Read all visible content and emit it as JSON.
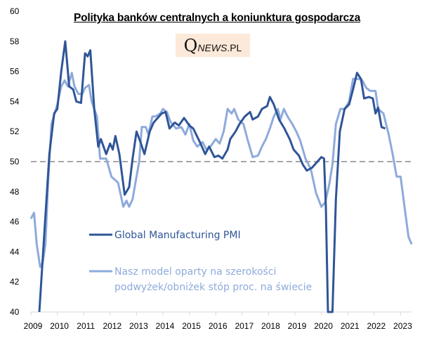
{
  "chart_data": {
    "type": "line",
    "title": "Polityka banków centralnych a koniunktura gospodarcza",
    "watermark": {
      "q": "Q",
      "news": "NEWS",
      "suffix": ".PL"
    },
    "xlabel": "",
    "ylabel": "",
    "xlim": [
      2009,
      2023.45
    ],
    "ylim": [
      40,
      60
    ],
    "x_ticks": [
      2009,
      2010,
      2011,
      2012,
      2013,
      2014,
      2015,
      2016,
      2017,
      2018,
      2019,
      2020,
      2021,
      2022,
      2023
    ],
    "y_ticks": [
      40,
      42,
      44,
      46,
      48,
      50,
      52,
      54,
      56,
      58,
      60
    ],
    "reference_line": {
      "value": 50,
      "style": "dashed",
      "color": "#a6a6a6"
    },
    "grid": false,
    "legend_position": "center-left (inside plot)",
    "series": [
      {
        "name": "Global Manufacturing PMI",
        "color": "#2f5597",
        "points": [
          [
            2009.32,
            40.0
          ],
          [
            2009.5,
            45.0
          ],
          [
            2009.7,
            50.5
          ],
          [
            2009.88,
            53.2
          ],
          [
            2010.0,
            53.5
          ],
          [
            2010.15,
            56.0
          ],
          [
            2010.3,
            58.0
          ],
          [
            2010.45,
            55.0
          ],
          [
            2010.6,
            54.8
          ],
          [
            2010.72,
            54.0
          ],
          [
            2010.9,
            53.9
          ],
          [
            2011.05,
            57.2
          ],
          [
            2011.15,
            57.0
          ],
          [
            2011.25,
            57.4
          ],
          [
            2011.4,
            53.5
          ],
          [
            2011.55,
            51.0
          ],
          [
            2011.65,
            51.5
          ],
          [
            2011.85,
            50.5
          ],
          [
            2012.0,
            51.2
          ],
          [
            2012.1,
            50.8
          ],
          [
            2012.2,
            51.7
          ],
          [
            2012.35,
            50.5
          ],
          [
            2012.55,
            47.8
          ],
          [
            2012.72,
            48.3
          ],
          [
            2012.85,
            50.2
          ],
          [
            2013.0,
            52.0
          ],
          [
            2013.15,
            51.3
          ],
          [
            2013.3,
            50.5
          ],
          [
            2013.5,
            52.0
          ],
          [
            2013.65,
            52.6
          ],
          [
            2013.85,
            53.0
          ],
          [
            2013.95,
            53.2
          ],
          [
            2014.1,
            53.3
          ],
          [
            2014.25,
            52.2
          ],
          [
            2014.45,
            52.6
          ],
          [
            2014.6,
            52.4
          ],
          [
            2014.8,
            52.9
          ],
          [
            2015.0,
            52.4
          ],
          [
            2015.15,
            52.2
          ],
          [
            2015.4,
            51.3
          ],
          [
            2015.6,
            50.5
          ],
          [
            2015.75,
            51.0
          ],
          [
            2015.95,
            50.3
          ],
          [
            2016.1,
            50.4
          ],
          [
            2016.25,
            50.2
          ],
          [
            2016.45,
            50.8
          ],
          [
            2016.55,
            51.5
          ],
          [
            2016.75,
            52.0
          ],
          [
            2016.9,
            52.5
          ],
          [
            2017.1,
            53.0
          ],
          [
            2017.3,
            53.3
          ],
          [
            2017.4,
            52.8
          ],
          [
            2017.6,
            53.0
          ],
          [
            2017.75,
            53.5
          ],
          [
            2017.95,
            53.7
          ],
          [
            2018.05,
            54.3
          ],
          [
            2018.2,
            53.8
          ],
          [
            2018.4,
            52.8
          ],
          [
            2018.6,
            52.2
          ],
          [
            2018.8,
            51.5
          ],
          [
            2018.95,
            50.8
          ],
          [
            2019.15,
            50.4
          ],
          [
            2019.3,
            49.8
          ],
          [
            2019.45,
            49.4
          ],
          [
            2019.65,
            49.6
          ],
          [
            2019.85,
            50.0
          ],
          [
            2020.0,
            50.3
          ],
          [
            2020.1,
            50.2
          ],
          [
            2020.17,
            47.0
          ],
          [
            2020.25,
            40.0
          ],
          [
            2020.42,
            40.0
          ],
          [
            2020.55,
            47.5
          ],
          [
            2020.7,
            52.0
          ],
          [
            2020.88,
            53.5
          ],
          [
            2021.05,
            53.8
          ],
          [
            2021.2,
            54.8
          ],
          [
            2021.35,
            55.9
          ],
          [
            2021.5,
            55.5
          ],
          [
            2021.62,
            54.2
          ],
          [
            2021.8,
            54.3
          ],
          [
            2021.95,
            54.2
          ],
          [
            2022.05,
            53.2
          ],
          [
            2022.15,
            53.6
          ],
          [
            2022.28,
            52.3
          ],
          [
            2022.42,
            52.2
          ]
        ]
      },
      {
        "name": "Nasz model oparty na szerokości podwyżek/obniżek stóp proc. na świecie",
        "color": "#8eaadb",
        "points": [
          [
            2009.0,
            46.2
          ],
          [
            2009.12,
            46.6
          ],
          [
            2009.22,
            44.5
          ],
          [
            2009.35,
            43.0
          ],
          [
            2009.45,
            43.3
          ],
          [
            2009.55,
            44.5
          ],
          [
            2009.65,
            48.5
          ],
          [
            2009.78,
            52.5
          ],
          [
            2010.0,
            53.8
          ],
          [
            2010.15,
            55.0
          ],
          [
            2010.28,
            55.4
          ],
          [
            2010.4,
            55.0
          ],
          [
            2010.55,
            55.9
          ],
          [
            2010.65,
            55.0
          ],
          [
            2010.8,
            54.5
          ],
          [
            2010.95,
            54.5
          ],
          [
            2011.05,
            54.9
          ],
          [
            2011.2,
            55.1
          ],
          [
            2011.3,
            54.0
          ],
          [
            2011.5,
            53.0
          ],
          [
            2011.62,
            50.2
          ],
          [
            2011.85,
            50.2
          ],
          [
            2012.05,
            49.0
          ],
          [
            2012.3,
            48.6
          ],
          [
            2012.5,
            47.0
          ],
          [
            2012.62,
            47.4
          ],
          [
            2012.72,
            47.0
          ],
          [
            2012.85,
            47.5
          ],
          [
            2012.95,
            48.5
          ],
          [
            2013.1,
            50.0
          ],
          [
            2013.2,
            52.3
          ],
          [
            2013.35,
            52.3
          ],
          [
            2013.45,
            51.8
          ],
          [
            2013.6,
            53.0
          ],
          [
            2013.72,
            53.0
          ],
          [
            2013.9,
            53.2
          ],
          [
            2014.0,
            53.5
          ],
          [
            2014.15,
            53.3
          ],
          [
            2014.3,
            52.6
          ],
          [
            2014.5,
            52.2
          ],
          [
            2014.7,
            52.3
          ],
          [
            2014.85,
            51.8
          ],
          [
            2015.0,
            52.5
          ],
          [
            2015.15,
            51.4
          ],
          [
            2015.3,
            51.0
          ],
          [
            2015.5,
            51.3
          ],
          [
            2015.65,
            50.8
          ],
          [
            2015.8,
            51.0
          ],
          [
            2016.0,
            51.5
          ],
          [
            2016.15,
            51.2
          ],
          [
            2016.3,
            52.0
          ],
          [
            2016.45,
            53.5
          ],
          [
            2016.6,
            53.2
          ],
          [
            2016.7,
            53.5
          ],
          [
            2016.85,
            52.8
          ],
          [
            2017.05,
            52.5
          ],
          [
            2017.2,
            51.5
          ],
          [
            2017.4,
            50.3
          ],
          [
            2017.6,
            50.4
          ],
          [
            2017.75,
            51.0
          ],
          [
            2017.9,
            51.5
          ],
          [
            2018.05,
            52.2
          ],
          [
            2018.2,
            53.0
          ],
          [
            2018.35,
            53.5
          ],
          [
            2018.45,
            52.8
          ],
          [
            2018.58,
            53.5
          ],
          [
            2018.72,
            53.0
          ],
          [
            2018.9,
            52.5
          ],
          [
            2019.05,
            52.0
          ],
          [
            2019.2,
            51.4
          ],
          [
            2019.4,
            50.2
          ],
          [
            2019.6,
            49.5
          ],
          [
            2019.8,
            47.9
          ],
          [
            2020.0,
            47.0
          ],
          [
            2020.15,
            47.3
          ],
          [
            2020.3,
            48.5
          ],
          [
            2020.42,
            49.8
          ],
          [
            2020.55,
            52.5
          ],
          [
            2020.72,
            53.5
          ],
          [
            2020.88,
            53.5
          ],
          [
            2021.05,
            54.0
          ],
          [
            2021.2,
            55.5
          ],
          [
            2021.4,
            55.5
          ],
          [
            2021.55,
            55.4
          ],
          [
            2021.7,
            54.9
          ],
          [
            2021.85,
            54.7
          ],
          [
            2022.05,
            54.7
          ],
          [
            2022.15,
            53.5
          ],
          [
            2022.35,
            53.2
          ],
          [
            2022.55,
            51.8
          ],
          [
            2022.7,
            50.5
          ],
          [
            2022.85,
            49.0
          ],
          [
            2023.0,
            49.0
          ],
          [
            2023.15,
            47.0
          ],
          [
            2023.3,
            45.0
          ],
          [
            2023.42,
            44.5
          ]
        ]
      }
    ],
    "legend": [
      {
        "label": "Global Manufacturing PMI",
        "color": "#2f5597"
      },
      {
        "label_line1": "Nasz model oparty na szerokości",
        "label_line2": "podwyżek/obniżek stóp proc. na świecie",
        "color": "#8eaadb"
      }
    ]
  }
}
